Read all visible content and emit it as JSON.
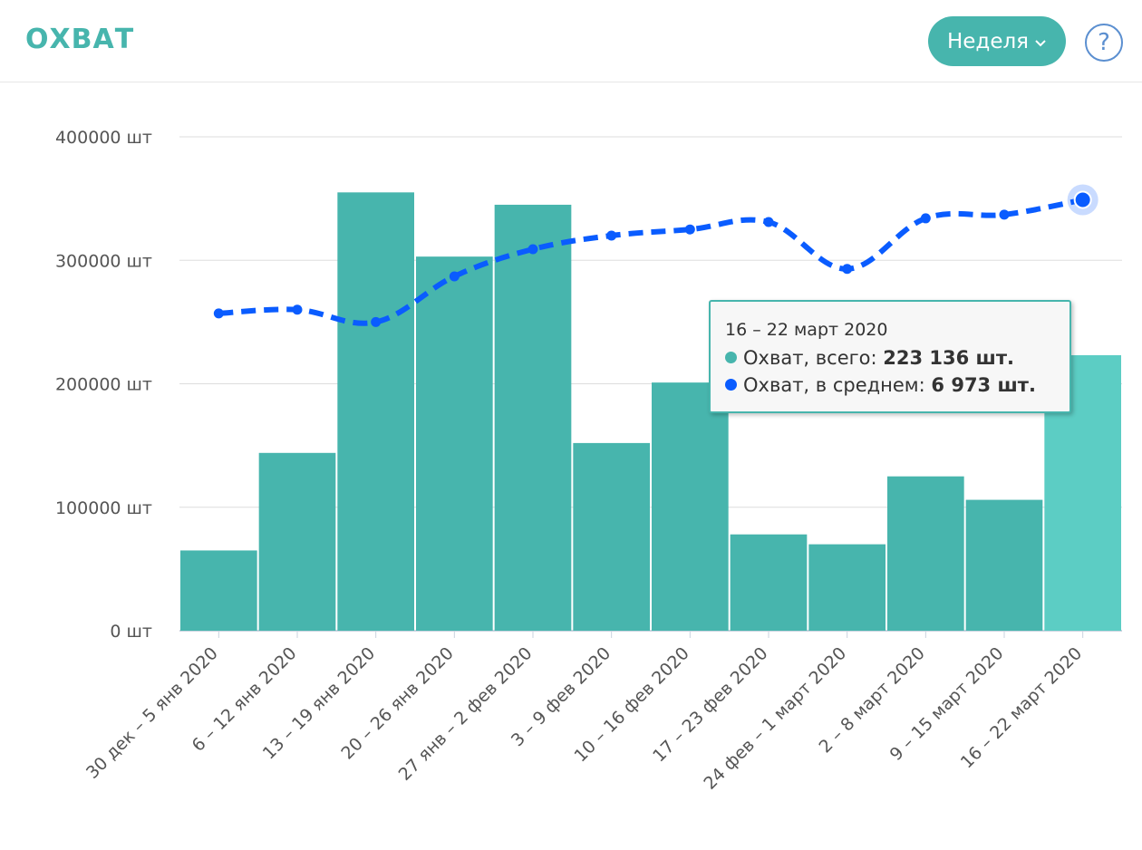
{
  "header": {
    "title": "ОХВАТ",
    "period_label": "Неделя",
    "period_icon": "chevron-down-icon",
    "help_icon": "question-circle-icon",
    "help_glyph": "?"
  },
  "colors": {
    "accent": "#47b5ad",
    "bar": "#47b5ad",
    "bar_highlight": "#5ccdc4",
    "line": "#0a5cff",
    "help": "#5b8fd0"
  },
  "chart_data": {
    "type": "bar",
    "categories": [
      "30 дек – 5 янв 2020",
      "6 – 12 янв 2020",
      "13 – 19 янв 2020",
      "20 – 26 янв 2020",
      "27 янв – 2 фев 2020",
      "3 – 9 фев 2020",
      "10 – 16 фев 2020",
      "17 – 23 фев 2020",
      "24 фев – 1 март 2020",
      "2 – 8 март 2020",
      "9 – 15 март 2020",
      "16 – 22 март 2020"
    ],
    "series": [
      {
        "name": "Охват, всего",
        "type": "bar",
        "values": [
          65000,
          144000,
          355000,
          303000,
          345000,
          152000,
          201000,
          78000,
          70000,
          125000,
          106000,
          223136
        ]
      },
      {
        "name": "Охват, в среднем",
        "type": "line",
        "style": "dashed",
        "values_on_left_axis_scale": [
          257000,
          260000,
          250000,
          287000,
          309000,
          320000,
          325000,
          331000,
          293000,
          334000,
          337000,
          349000
        ]
      }
    ],
    "y_ticks": [
      "0 шт",
      "100000 шт",
      "200000 шт",
      "300000 шт",
      "400000 шт"
    ],
    "ylim": [
      0,
      400000
    ],
    "grid": true,
    "highlighted_index": 11
  },
  "tooltip": {
    "title": "16 – 22 март 2020",
    "row1_label": "Охват, всего: ",
    "row1_value": "223 136 шт.",
    "row2_label": "Охват, в среднем: ",
    "row2_value": "6 973 шт."
  }
}
